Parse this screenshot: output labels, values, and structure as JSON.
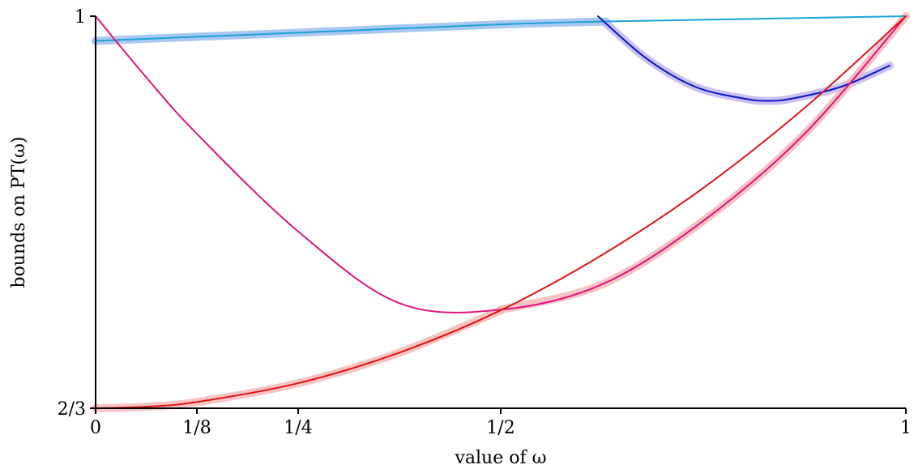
{
  "chart_data": {
    "type": "line",
    "xlabel": "value of ω",
    "ylabel": "bounds on PT(ω)",
    "xlim": [
      0,
      1
    ],
    "ylim": [
      0.6667,
      1
    ],
    "x_ticks": [
      {
        "value": 0,
        "label": "0"
      },
      {
        "value": 0.125,
        "label": "1/8"
      },
      {
        "value": 0.25,
        "label": "1/4"
      },
      {
        "value": 0.5,
        "label": "1/2"
      },
      {
        "value": 1,
        "label": "1"
      }
    ],
    "y_ticks": [
      {
        "value": 0.6667,
        "label": "2/3"
      },
      {
        "value": 1,
        "label": "1"
      }
    ],
    "grid": false,
    "legend": "none",
    "series": [
      {
        "id": "cyan-line",
        "color": "#1aa3d9",
        "x": [
          0,
          0.25,
          0.5,
          0.63,
          1
        ],
        "y": [
          0.979,
          0.986,
          0.993,
          0.9955,
          1.0
        ]
      },
      {
        "id": "blue-curve",
        "color": "#0a14cc",
        "x": [
          0.62,
          0.68,
          0.74,
          0.8,
          0.83,
          0.86,
          0.92,
          0.98
        ],
        "y": [
          1.0,
          0.964,
          0.94,
          0.93,
          0.928,
          0.93,
          0.94,
          0.958
        ]
      },
      {
        "id": "magenta-curve",
        "color": "#e0147f",
        "x": [
          0,
          0.0625,
          0.125,
          0.25,
          0.375,
          0.5,
          0.625,
          0.75,
          0.875,
          1
        ],
        "y": [
          1.0,
          0.948,
          0.9,
          0.817,
          0.756,
          0.7505,
          0.772,
          0.826,
          0.9,
          1.0
        ]
      },
      {
        "id": "red-curve",
        "color": "#e01414",
        "x": [
          0,
          0.0625,
          0.125,
          0.25,
          0.375,
          0.5,
          0.625,
          0.75,
          0.875,
          1
        ],
        "y": [
          0.6667,
          0.668,
          0.672,
          0.688,
          0.714,
          0.75,
          0.797,
          0.854,
          0.922,
          1.0
        ]
      }
    ],
    "highlight_bands": [
      {
        "id": "lightblue-band",
        "color": "#9bbdf0",
        "over": "cyan-line",
        "x_range": [
          0,
          0.63
        ]
      },
      {
        "id": "lavender-band",
        "color": "#c4b6f2",
        "over": "blue-curve",
        "x_range": [
          0.63,
          0.98
        ]
      },
      {
        "id": "pink-band-red",
        "color": "#f6b8b8",
        "over": "red-curve",
        "x_range": [
          0,
          0.5
        ]
      },
      {
        "id": "pink-band-magenta",
        "color": "#f6b8b8",
        "over": "magenta-curve",
        "x_range": [
          0.5,
          1
        ]
      }
    ]
  }
}
